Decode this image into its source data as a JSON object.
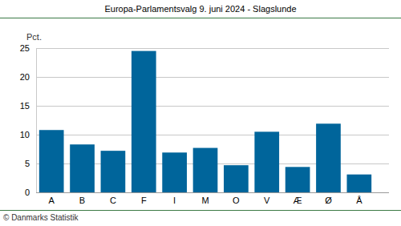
{
  "chart_data": {
    "type": "bar",
    "title": "Europa-Parlamentsvalg 9. juni 2024 - Slagslunde",
    "ylabel": "Pct.",
    "annotations": [
      "© Danmarks Statistik"
    ],
    "categories": [
      "A",
      "B",
      "C",
      "F",
      "I",
      "M",
      "O",
      "V",
      "Æ",
      "Ø",
      "Å"
    ],
    "values": [
      10.8,
      8.3,
      7.2,
      24.5,
      6.9,
      7.7,
      4.7,
      10.5,
      4.4,
      11.9,
      3.1
    ],
    "color": "#00659b",
    "ylim": [
      0,
      25
    ],
    "yticks": [
      0,
      5,
      10,
      15,
      20,
      25
    ],
    "grid": true
  }
}
